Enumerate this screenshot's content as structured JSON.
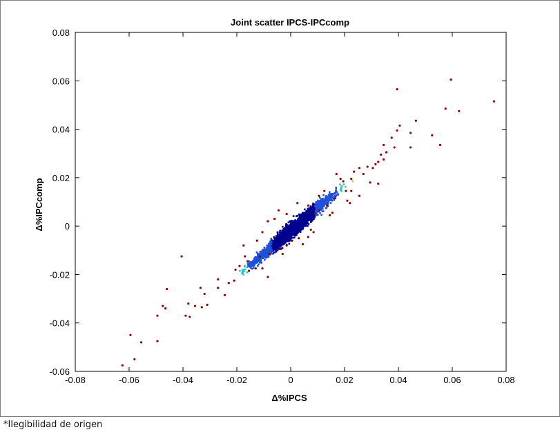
{
  "chart_data": {
    "type": "scatter",
    "title": "Joint scatter IPCS-IPCcomp",
    "xlabel": "Δ%IPCS",
    "ylabel": "Δ%IPCcomp",
    "xlim": [
      -0.08,
      0.08
    ],
    "ylim": [
      -0.06,
      0.08
    ],
    "xticks": [
      "-0.08",
      "-0.06",
      "-0.04",
      "-0.02",
      "0",
      "0.02",
      "0.04",
      "0.06",
      "0.08"
    ],
    "yticks": [
      "-0.06",
      "-0.04",
      "-0.02",
      "0",
      "0.02",
      "0.04",
      "0.06",
      "0.08"
    ],
    "grid": false,
    "colors": {
      "outlier": "#8b0000",
      "sparse": "#e8c400",
      "mid": "#2ec4c4",
      "dense": "#1f50d8",
      "core": "#00008f"
    },
    "outliers": [
      [
        -0.0625,
        -0.0575
      ],
      [
        -0.058,
        -0.055
      ],
      [
        -0.0595,
        -0.045
      ],
      [
        -0.0555,
        -0.048
      ],
      [
        -0.0495,
        -0.0475
      ],
      [
        -0.0495,
        -0.037
      ],
      [
        -0.0465,
        -0.034
      ],
      [
        -0.0475,
        -0.033
      ],
      [
        -0.046,
        -0.026
      ],
      [
        -0.0405,
        -0.0125
      ],
      [
        -0.039,
        -0.037
      ],
      [
        -0.0375,
        -0.0375
      ],
      [
        -0.038,
        -0.032
      ],
      [
        -0.0355,
        -0.033
      ],
      [
        -0.033,
        -0.0335
      ],
      [
        -0.032,
        -0.028
      ],
      [
        -0.0335,
        -0.0255
      ],
      [
        -0.031,
        -0.0325
      ],
      [
        -0.027,
        -0.022
      ],
      [
        -0.027,
        -0.0255
      ],
      [
        -0.0245,
        -0.0285
      ],
      [
        -0.023,
        -0.0235
      ],
      [
        -0.021,
        -0.0225
      ],
      [
        -0.0205,
        -0.018
      ],
      [
        -0.019,
        -0.0165
      ],
      [
        -0.017,
        -0.0125
      ],
      [
        -0.0175,
        -0.008
      ],
      [
        -0.016,
        -0.0145
      ],
      [
        -0.0155,
        -0.0185
      ],
      [
        -0.013,
        -0.0175
      ],
      [
        -0.0115,
        -0.0125
      ],
      [
        -0.0105,
        -0.0175
      ],
      [
        -0.0085,
        -0.021
      ],
      [
        -0.008,
        -0.0115
      ],
      [
        -0.0105,
        -0.0025
      ],
      [
        -0.0085,
        0.002
      ],
      [
        -0.006,
        0.003
      ],
      [
        -0.0045,
        0.0065
      ],
      [
        -0.004,
        -0.0095
      ],
      [
        -0.0015,
        -0.008
      ],
      [
        -0.0125,
        -0.006
      ],
      [
        0.0005,
        -0.006
      ],
      [
        0.003,
        -0.005
      ],
      [
        0.0045,
        -0.0075
      ],
      [
        0.0065,
        -0.0045
      ],
      [
        0.0065,
        0.0085
      ],
      [
        0.0075,
        -0.0015
      ],
      [
        0.009,
        0.005
      ],
      [
        0.0105,
        0.0065
      ],
      [
        0.0105,
        0.0125
      ],
      [
        0.0125,
        0.0145
      ],
      [
        0.0135,
        0.0085
      ],
      [
        0.0145,
        0.0045
      ],
      [
        0.0155,
        0.0055
      ],
      [
        0.0165,
        0.0115
      ],
      [
        0.017,
        0.0215
      ],
      [
        0.0185,
        0.0195
      ],
      [
        0.0205,
        0.0145
      ],
      [
        0.021,
        0.0105
      ],
      [
        0.022,
        0.0095
      ],
      [
        0.0225,
        0.0195
      ],
      [
        0.0235,
        0.0225
      ],
      [
        0.0255,
        0.024
      ],
      [
        0.0255,
        0.0125
      ],
      [
        0.027,
        0.0215
      ],
      [
        0.0285,
        0.0245
      ],
      [
        0.0295,
        0.018
      ],
      [
        0.0305,
        0.024
      ],
      [
        0.0315,
        0.0255
      ],
      [
        0.0325,
        0.0265
      ],
      [
        0.0325,
        0.0175
      ],
      [
        0.0335,
        0.0295
      ],
      [
        0.0345,
        0.0275
      ],
      [
        0.0345,
        0.0335
      ],
      [
        0.0355,
        0.0305
      ],
      [
        0.0375,
        0.0365
      ],
      [
        0.0385,
        0.0325
      ],
      [
        0.0395,
        0.0395
      ],
      [
        0.0405,
        0.0415
      ],
      [
        0.0395,
        0.0565
      ],
      [
        0.0465,
        0.0435
      ],
      [
        0.0445,
        0.0385
      ],
      [
        0.0445,
        0.0325
      ],
      [
        0.0525,
        0.0375
      ],
      [
        0.0555,
        0.0335
      ],
      [
        0.0575,
        0.0485
      ],
      [
        0.0595,
        0.0605
      ],
      [
        0.0625,
        0.0475
      ],
      [
        0.0755,
        0.0515
      ],
      [
        0.0225,
        0.0145
      ],
      [
        0.0195,
        0.0185
      ],
      [
        0.0085,
        -0.0025
      ],
      [
        0.0025,
        0.0095
      ],
      [
        -0.0015,
        0.005
      ],
      [
        -0.003,
        -0.0115
      ]
    ],
    "density_band": {
      "x_range": [
        -0.024,
        0.026
      ],
      "slope": 0.95,
      "points": 2600
    }
  },
  "footnote": "*Ilegibilidad de origen"
}
